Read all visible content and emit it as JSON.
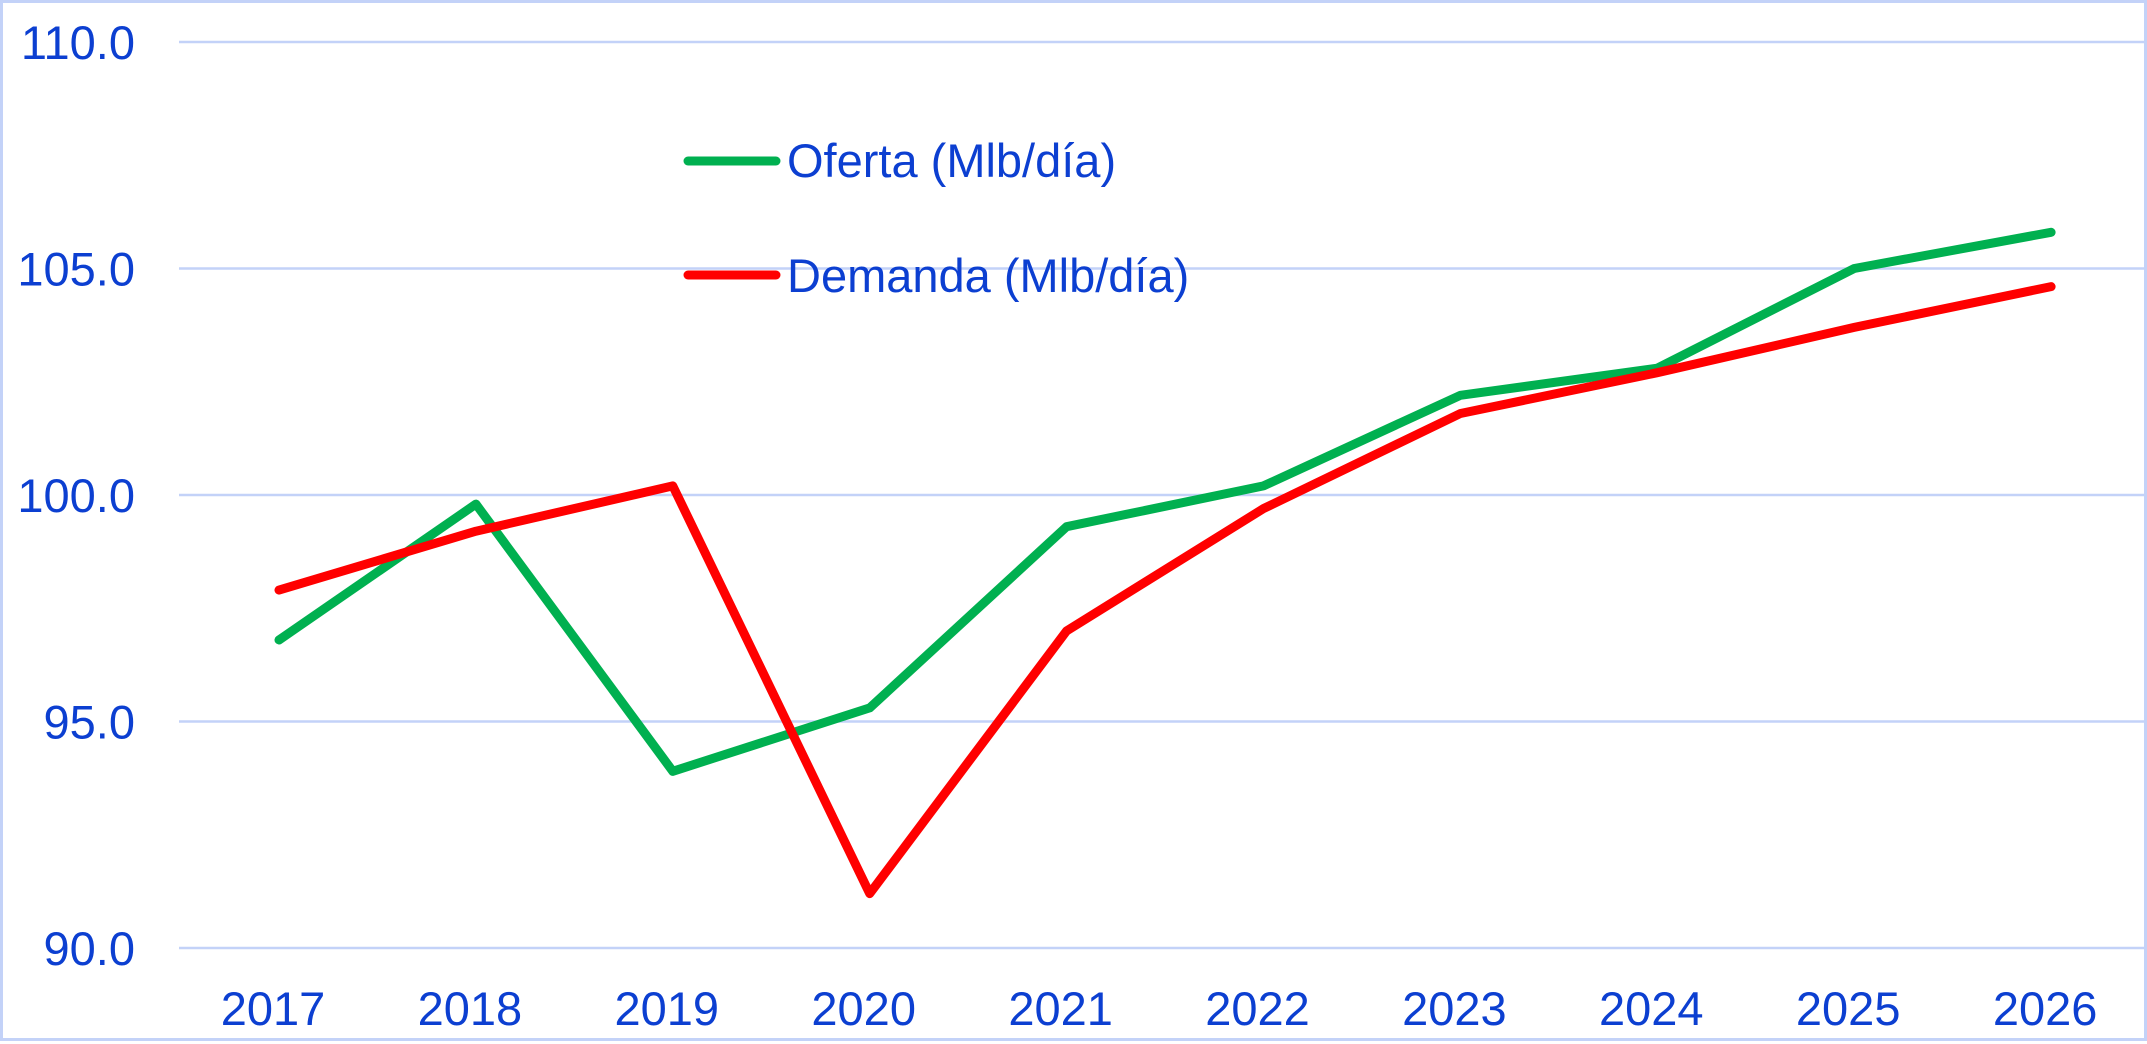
{
  "chart_data": {
    "type": "line",
    "title": "",
    "xlabel": "",
    "ylabel": "",
    "categories": [
      "2017",
      "2018",
      "2019",
      "2020",
      "2021",
      "2022",
      "2023",
      "2024",
      "2025",
      "2026"
    ],
    "series": [
      {
        "name": "Oferta (Mlb/día)",
        "color": "#00b050",
        "values": [
          96.8,
          99.8,
          93.9,
          95.3,
          99.3,
          100.2,
          102.2,
          102.8,
          105.0,
          105.8
        ]
      },
      {
        "name": "Demanda (Mlb/día)",
        "color": "#ff0000",
        "values": [
          97.9,
          99.2,
          100.2,
          91.2,
          97.0,
          99.7,
          101.8,
          102.7,
          103.7,
          104.6
        ]
      }
    ],
    "ylim": [
      90,
      110
    ],
    "yticks": [
      "90.0",
      "95.0",
      "100.0",
      "105.0",
      "110.0"
    ],
    "grid": true,
    "legend_position": "upper-center (inside plot)"
  },
  "colors": {
    "text": "#0c3fd1",
    "grid": "#c3d2f8",
    "border": "#c3d2f8"
  }
}
